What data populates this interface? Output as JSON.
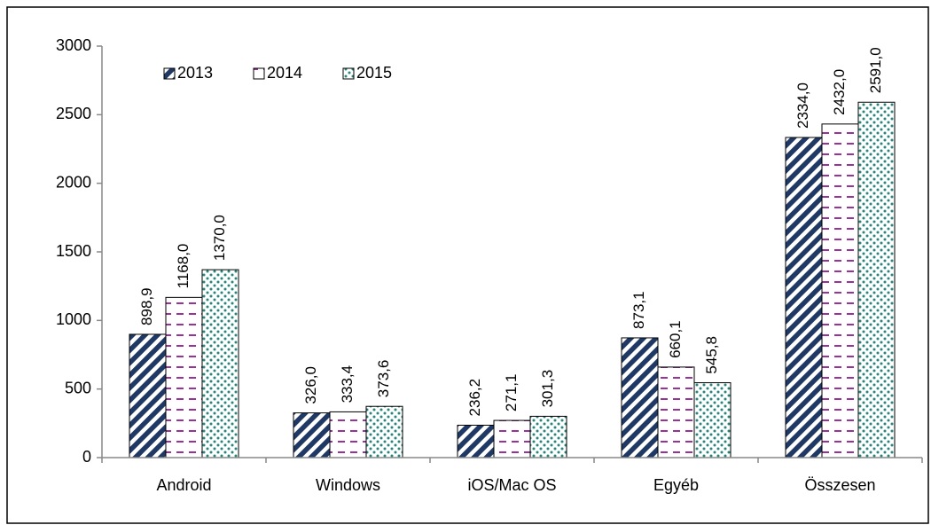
{
  "chart_data": {
    "type": "bar",
    "categories": [
      "Android",
      "Windows",
      "iOS/Mac OS",
      "Egyéb",
      "Összesen"
    ],
    "series": [
      {
        "name": "2013",
        "color": "#1f3864",
        "values": [
          898.9,
          326.0,
          236.2,
          873.1,
          2334.0
        ],
        "value_labels": [
          "898,9",
          "326,0",
          "236,2",
          "873,1",
          "2334,0"
        ]
      },
      {
        "name": "2014",
        "color": "#993399",
        "values": [
          1168.0,
          333.4,
          271.1,
          660.1,
          2432.0
        ],
        "value_labels": [
          "1168,0",
          "333,4",
          "271,1",
          "660,1",
          "2432,0"
        ]
      },
      {
        "name": "2015",
        "color": "#23877a",
        "values": [
          1370.0,
          373.6,
          301.3,
          545.8,
          2591.0
        ],
        "value_labels": [
          "1370,0",
          "373,6",
          "301,3",
          "545,8",
          "2591,0"
        ]
      }
    ],
    "ylim": [
      0,
      3000
    ],
    "yticks": [
      0,
      500,
      1000,
      1500,
      2000,
      2500,
      3000
    ],
    "legend": "top-left"
  }
}
